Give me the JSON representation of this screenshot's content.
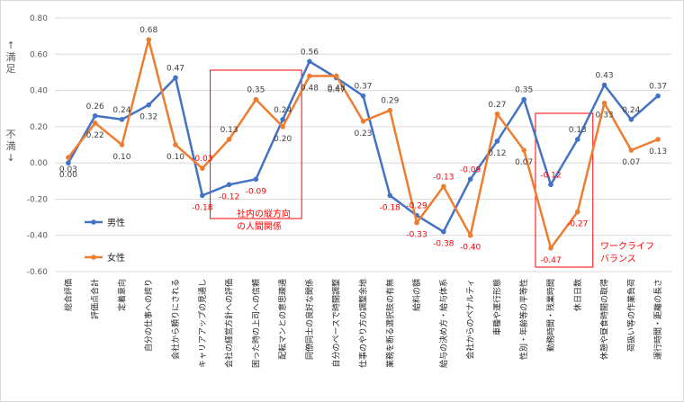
{
  "chart_data": {
    "type": "line",
    "categories": [
      "総合評価",
      "評価点合計",
      "定着意向",
      "自分の仕事への誇り",
      "会社から頼りにされる",
      "キャリアアップの見通し",
      "会社の経営方針への評価",
      "困った時の上司への信頼",
      "配転マンとの意思疎通",
      "同僚同士の良好な関係",
      "自分のペースで時間調整",
      "仕事のやり方の調整余地",
      "業務を断る選択肢の有無",
      "給料の額",
      "給与の決め方・給与体系",
      "会社からのペナルティ",
      "車種や運行形態",
      "性別・年齢等の平等性",
      "勤務時間・残業時間",
      "休日日数",
      "休憩や昼食時間の取得",
      "荷扱い等の作業負荷",
      "運行時間・距離の長さ"
    ],
    "series": [
      {
        "name": "男性",
        "color": "#4472c4",
        "values": [
          0.0,
          0.26,
          0.24,
          0.32,
          0.47,
          -0.18,
          -0.12,
          -0.09,
          0.24,
          0.56,
          0.47,
          0.37,
          -0.18,
          -0.29,
          -0.38,
          -0.09,
          0.12,
          0.35,
          -0.12,
          0.13,
          0.43,
          0.24,
          0.37
        ],
        "labels": [
          "0.00",
          "0.26",
          "0.24",
          "0.32",
          "0.47",
          "-0.18",
          "-0.12",
          "-0.09",
          "0.24",
          "0.56",
          "0.47",
          "0.37",
          "-0.18",
          "-0.29",
          "-0.38",
          "-0.09",
          "0.12",
          "0.35",
          "-0.12",
          "0.13",
          "0.43",
          "0.24",
          "0.37"
        ]
      },
      {
        "name": "女性",
        "color": "#ed7d31",
        "values": [
          0.03,
          0.22,
          0.1,
          0.68,
          0.1,
          -0.03,
          0.13,
          0.35,
          0.2,
          0.48,
          0.48,
          0.23,
          0.29,
          -0.33,
          -0.13,
          -0.4,
          0.27,
          0.07,
          -0.47,
          -0.27,
          0.33,
          0.07,
          0.13
        ],
        "labels": [
          "0.03",
          "0.22",
          "0.10",
          "0.68",
          "0.10",
          "-0.03",
          "0.13",
          "0.35",
          "0.20",
          "0.48",
          "0.48",
          "0.23",
          "0.29",
          "-0.33",
          "-0.13",
          "-0.40",
          "0.27",
          "0.07",
          "-0.47",
          "-0.27",
          "0.33",
          "0.07",
          "0.13"
        ]
      }
    ],
    "ylim": [
      -0.6,
      0.8
    ],
    "yticks": [
      "0.80",
      "0.60",
      "0.40",
      "0.20",
      "0.00",
      "-0.20",
      "-0.40",
      "-0.60"
    ],
    "ylabel_upper": "↑満足",
    "ylabel_lower": "不満↓",
    "legend_position": "left-middle",
    "grid": true,
    "annotations": [
      {
        "text": "社内の縦方向の人間関係",
        "lines": [
          "社内の縦方向",
          "の人間関係"
        ],
        "color": "#ff0000"
      },
      {
        "text": "ワークライフバランス",
        "lines": [
          "ワークライフ",
          "バランス"
        ],
        "color": "#ff0000"
      }
    ]
  }
}
